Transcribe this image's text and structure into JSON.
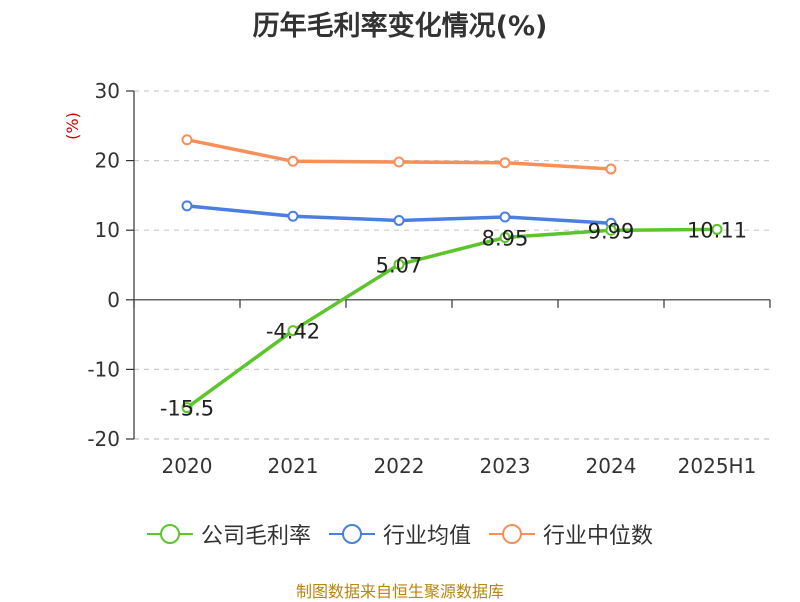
{
  "chart_data": {
    "type": "line",
    "title": "历年毛利率变化情况(%)",
    "ylabel": "(%)",
    "categories": [
      "2020",
      "2021",
      "2022",
      "2023",
      "2024",
      "2025H1"
    ],
    "ylim": [
      -20,
      30
    ],
    "yticks": [
      -20,
      -10,
      0,
      10,
      20,
      30
    ],
    "grid": true,
    "legend_position": "bottom",
    "series": [
      {
        "name": "公司毛利率",
        "color": "#5bc52b",
        "values": [
          -15.5,
          -4.42,
          5.07,
          8.95,
          9.99,
          10.11
        ],
        "labels": [
          "-15.5",
          "-4.42",
          "5.07",
          "8.95",
          "9.99",
          "10.11"
        ]
      },
      {
        "name": "行业均值",
        "color": "#4a7fe0",
        "values": [
          13.5,
          12.0,
          11.4,
          11.9,
          11.0,
          null
        ]
      },
      {
        "name": "行业中位数",
        "color": "#f78f58",
        "values": [
          23.0,
          19.9,
          19.8,
          19.7,
          18.8,
          null
        ]
      }
    ]
  },
  "source": "制图数据来自恒生聚源数据库"
}
